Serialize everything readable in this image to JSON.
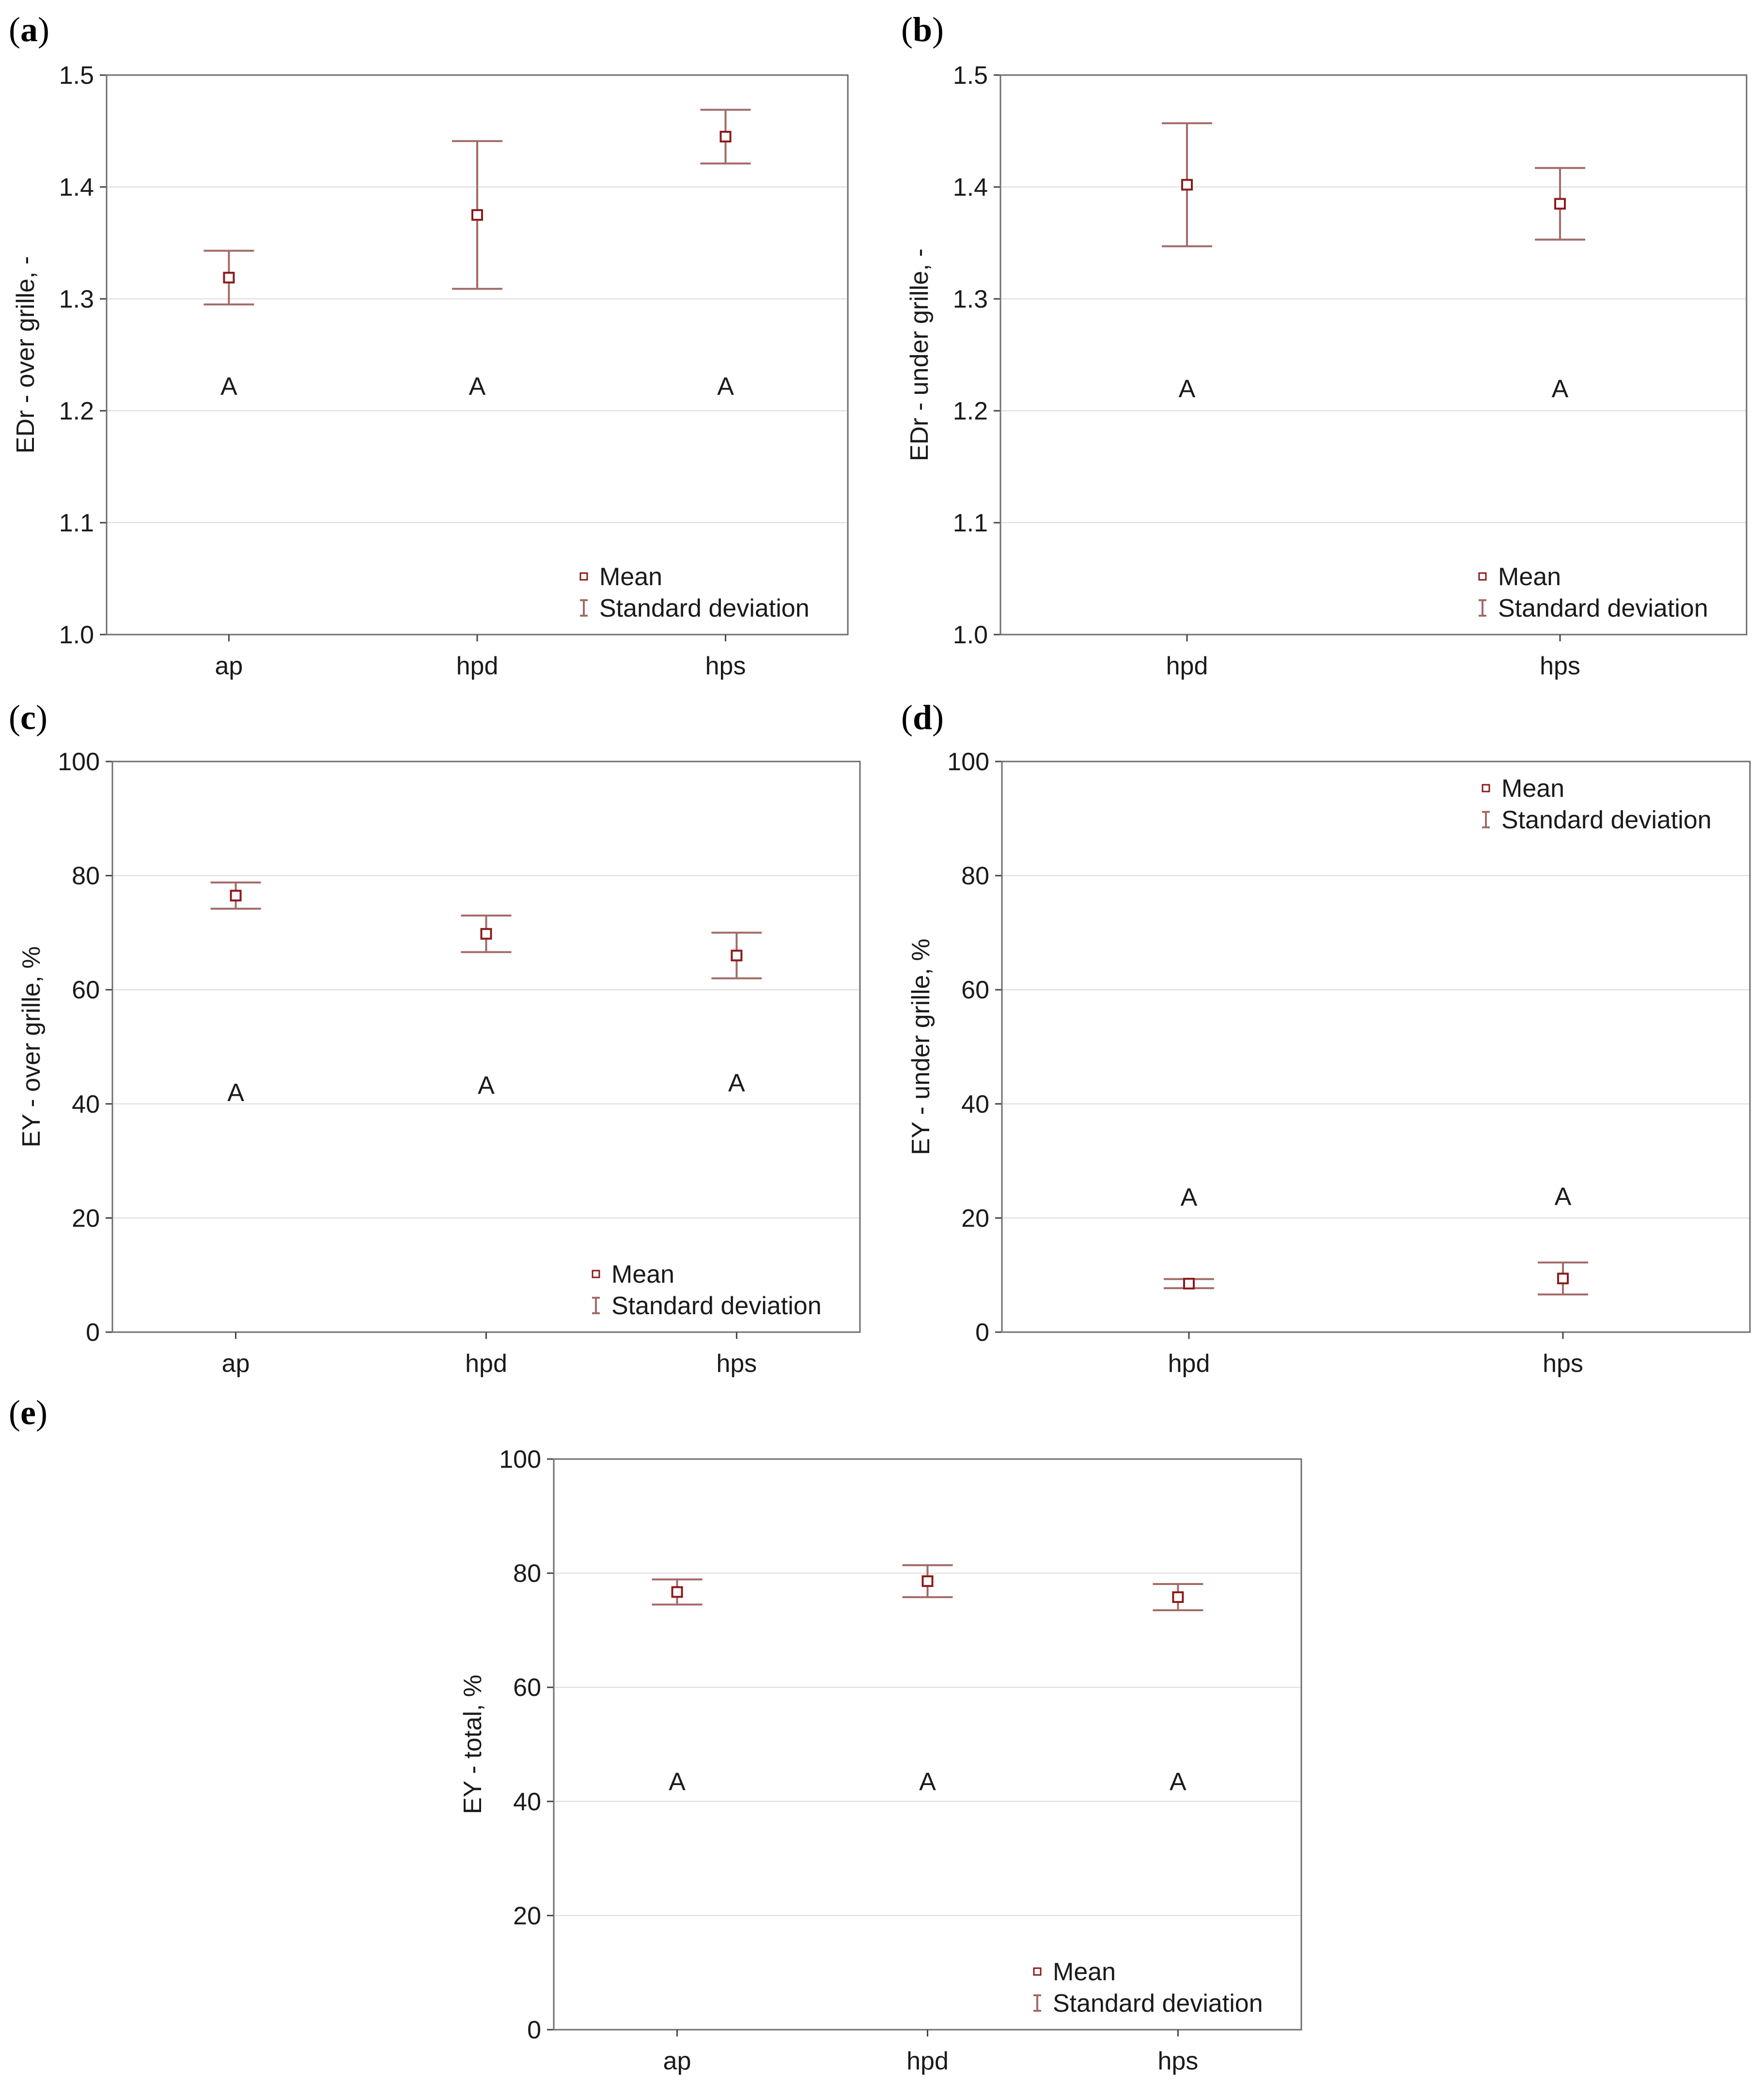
{
  "figure": {
    "legend": {
      "mean": "Mean",
      "sd": "Standard deviation"
    }
  },
  "chart_data": [
    {
      "id": "a",
      "label_prefix": "(",
      "label_letter": "a",
      "label_suffix": ")",
      "type": "scatter",
      "ylabel": "EDr - over grille, -",
      "ylim": [
        1.0,
        1.5
      ],
      "yticks": [
        1.0,
        1.1,
        1.2,
        1.3,
        1.4,
        1.5
      ],
      "ytick_labels": [
        "1.0",
        "1.1",
        "1.2",
        "1.3",
        "1.4",
        "1.5"
      ],
      "categories": [
        "ap",
        "hpd",
        "hps"
      ],
      "mean": [
        1.319,
        1.375,
        1.445
      ],
      "sd": [
        0.024,
        0.066,
        0.024
      ],
      "group_letters": [
        "A",
        "A",
        "A"
      ],
      "letter_y": [
        1.222,
        1.222,
        1.222
      ],
      "legend_position": "bottom-right"
    },
    {
      "id": "b",
      "label_prefix": "(",
      "label_letter": "b",
      "label_suffix": ")",
      "type": "scatter",
      "ylabel": "EDr - under grille, -",
      "ylim": [
        1.0,
        1.5
      ],
      "yticks": [
        1.0,
        1.1,
        1.2,
        1.3,
        1.4,
        1.5
      ],
      "ytick_labels": [
        "1.0",
        "1.1",
        "1.2",
        "1.3",
        "1.4",
        "1.5"
      ],
      "categories": [
        "hpd",
        "hps"
      ],
      "mean": [
        1.402,
        1.385
      ],
      "sd": [
        0.055,
        0.032
      ],
      "group_letters": [
        "A",
        "A"
      ],
      "letter_y": [
        1.22,
        1.22
      ],
      "legend_position": "bottom-right"
    },
    {
      "id": "c",
      "label_prefix": "(",
      "label_letter": "c",
      "label_suffix": ")",
      "type": "scatter",
      "ylabel": "EY - over grille, %",
      "ylim": [
        0,
        100
      ],
      "yticks": [
        0,
        20,
        40,
        60,
        80,
        100
      ],
      "ytick_labels": [
        "0",
        "20",
        "40",
        "60",
        "80",
        "100"
      ],
      "categories": [
        "ap",
        "hpd",
        "hps"
      ],
      "mean": [
        76.5,
        69.8,
        66.0
      ],
      "sd": [
        2.3,
        3.2,
        4.0
      ],
      "group_letters": [
        "A",
        "A",
        "A"
      ],
      "letter_y": [
        42,
        43.3,
        43.7
      ],
      "legend_position": "bottom-right"
    },
    {
      "id": "d",
      "label_prefix": "(",
      "label_letter": "d",
      "label_suffix": ")",
      "type": "scatter",
      "ylabel": "EY - under grille, %",
      "ylim": [
        0,
        100
      ],
      "yticks": [
        0,
        20,
        40,
        60,
        80,
        100
      ],
      "ytick_labels": [
        "0",
        "20",
        "40",
        "60",
        "80",
        "100"
      ],
      "categories": [
        "hpd",
        "hps"
      ],
      "mean": [
        8.5,
        9.4
      ],
      "sd": [
        0.8,
        2.8
      ],
      "group_letters": [
        "A",
        "A"
      ],
      "letter_y": [
        23.7,
        23.8
      ],
      "legend_position": "top-right"
    },
    {
      "id": "e",
      "label_prefix": "(",
      "label_letter": "e",
      "label_suffix": ")",
      "type": "scatter",
      "ylabel": "EY - total, %",
      "ylim": [
        0,
        100
      ],
      "yticks": [
        0,
        20,
        40,
        60,
        80,
        100
      ],
      "ytick_labels": [
        "0",
        "20",
        "40",
        "60",
        "80",
        "100"
      ],
      "categories": [
        "ap",
        "hpd",
        "hps"
      ],
      "mean": [
        76.7,
        78.6,
        75.8
      ],
      "sd": [
        2.2,
        2.8,
        2.3
      ],
      "group_letters": [
        "A",
        "A",
        "A"
      ],
      "letter_y": [
        43.5,
        43.5,
        43.5
      ],
      "legend_position": "bottom-right"
    }
  ]
}
